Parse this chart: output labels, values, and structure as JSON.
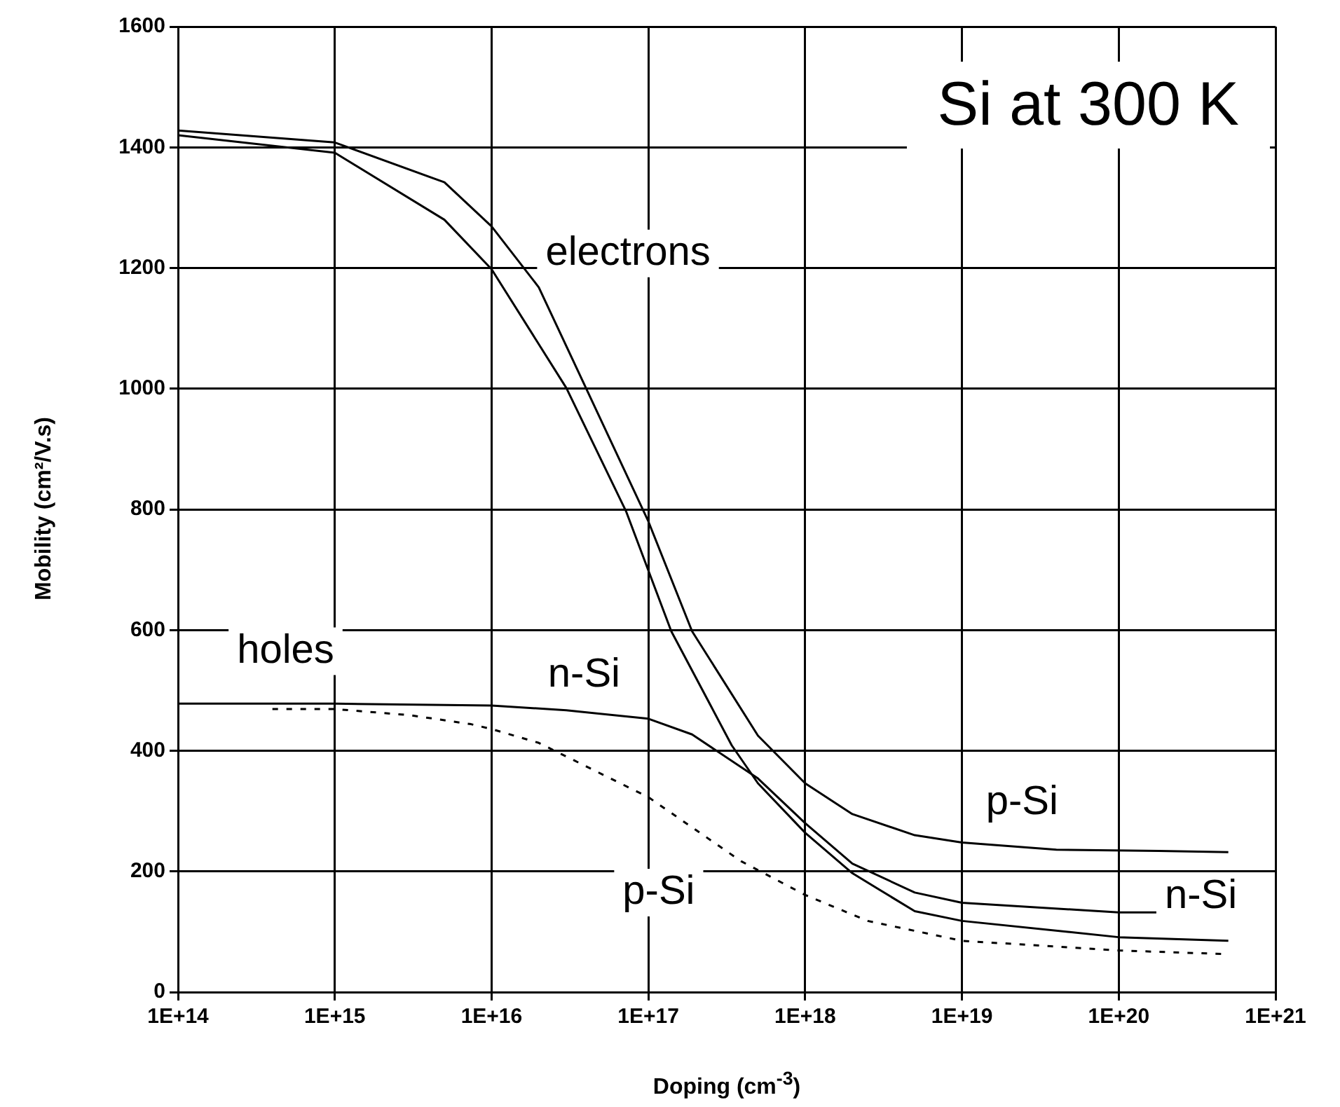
{
  "chart_data": {
    "type": "line",
    "xlabel": "Doping (cm$^{-3}$)",
    "ylabel": "Mobility (cm²/V.s)",
    "log": "x",
    "xlim": [
      100000000000000.0,
      1e+21
    ],
    "xticks": [
      {
        "value": 100000000000000.0,
        "label": "1E+14"
      },
      {
        "value": 1000000000000000.0,
        "label": "1E+15"
      },
      {
        "value": 1e+16,
        "label": "1E+16"
      },
      {
        "value": 1e+17,
        "label": "1E+17"
      },
      {
        "value": 1e+18,
        "label": "1E+18"
      },
      {
        "value": 1e+19,
        "label": "1E+19"
      },
      {
        "value": 1e+20,
        "label": "1E+20"
      },
      {
        "value": 1e+21,
        "label": "1E+21"
      }
    ],
    "ylim": [
      0,
      1600
    ],
    "yticks": [
      0,
      200,
      400,
      600,
      800,
      1000,
      1200,
      1400,
      1600
    ],
    "grid": true,
    "legend": false,
    "marker": "none",
    "series": [
      {
        "name": "p-Si",
        "color": "#000000",
        "line_style": "solid",
        "x": [
          100000000000000.0,
          1000000000000000.0,
          5000000000000000.0,
          1e+16,
          2e+16,
          4e+16,
          1e+17,
          1.9e+17,
          5e+17,
          1e+18,
          2e+18,
          5e+18,
          1e+19,
          4e+19,
          1.8e+20,
          5e+20
        ],
        "values": [
          1428,
          1408,
          1342,
          1269,
          1168,
          1001,
          780,
          598,
          425,
          346,
          295,
          260,
          248,
          236,
          234,
          232
        ]
      },
      {
        "color": "#000000",
        "line_style": "solid",
        "x": [
          100000000000000.0,
          1000000000000000.0,
          5000000000000000.0,
          1e+16,
          3e+16,
          7.2e+16,
          1.4e+17,
          3.4e+17,
          5e+17,
          1e+18,
          2e+18,
          5e+18,
          1e+19,
          1e+20,
          5e+20
        ],
        "values": [
          1420,
          1391,
          1280,
          1198,
          1001,
          797,
          598,
          409,
          346,
          264,
          197,
          134,
          118,
          91,
          85
        ]
      },
      {
        "name": "n-Si",
        "color": "#000000",
        "line_style": "solid",
        "x": [
          100000000000000.0,
          1000000000000000.0,
          1e+16,
          3e+16,
          1e+17,
          1.9e+17,
          5e+17,
          1e+18,
          2e+18,
          5e+18,
          1e+19,
          1e+20,
          1.8e+20
        ],
        "values": [
          478,
          478,
          475,
          467,
          453,
          427,
          354,
          280,
          213,
          165,
          148,
          132,
          132
        ]
      },
      {
        "name": "p-Si",
        "color": "#000000",
        "line_style": "dashed",
        "x": [
          400000000000000.0,
          1000000000000000.0,
          3000000000000000.0,
          7400000000000000.0,
          1e+16,
          2e+16,
          1e+17,
          3.9e+17,
          1e+18,
          2.5e+18,
          1e+19,
          1e+20,
          4.8e+20
        ],
        "values": [
          469,
          469,
          459,
          444,
          436,
          413,
          323,
          217,
          161,
          118,
          85,
          69,
          63
        ]
      }
    ],
    "annotations": [
      "Si at 300 K",
      "electrons",
      "holes"
    ]
  }
}
